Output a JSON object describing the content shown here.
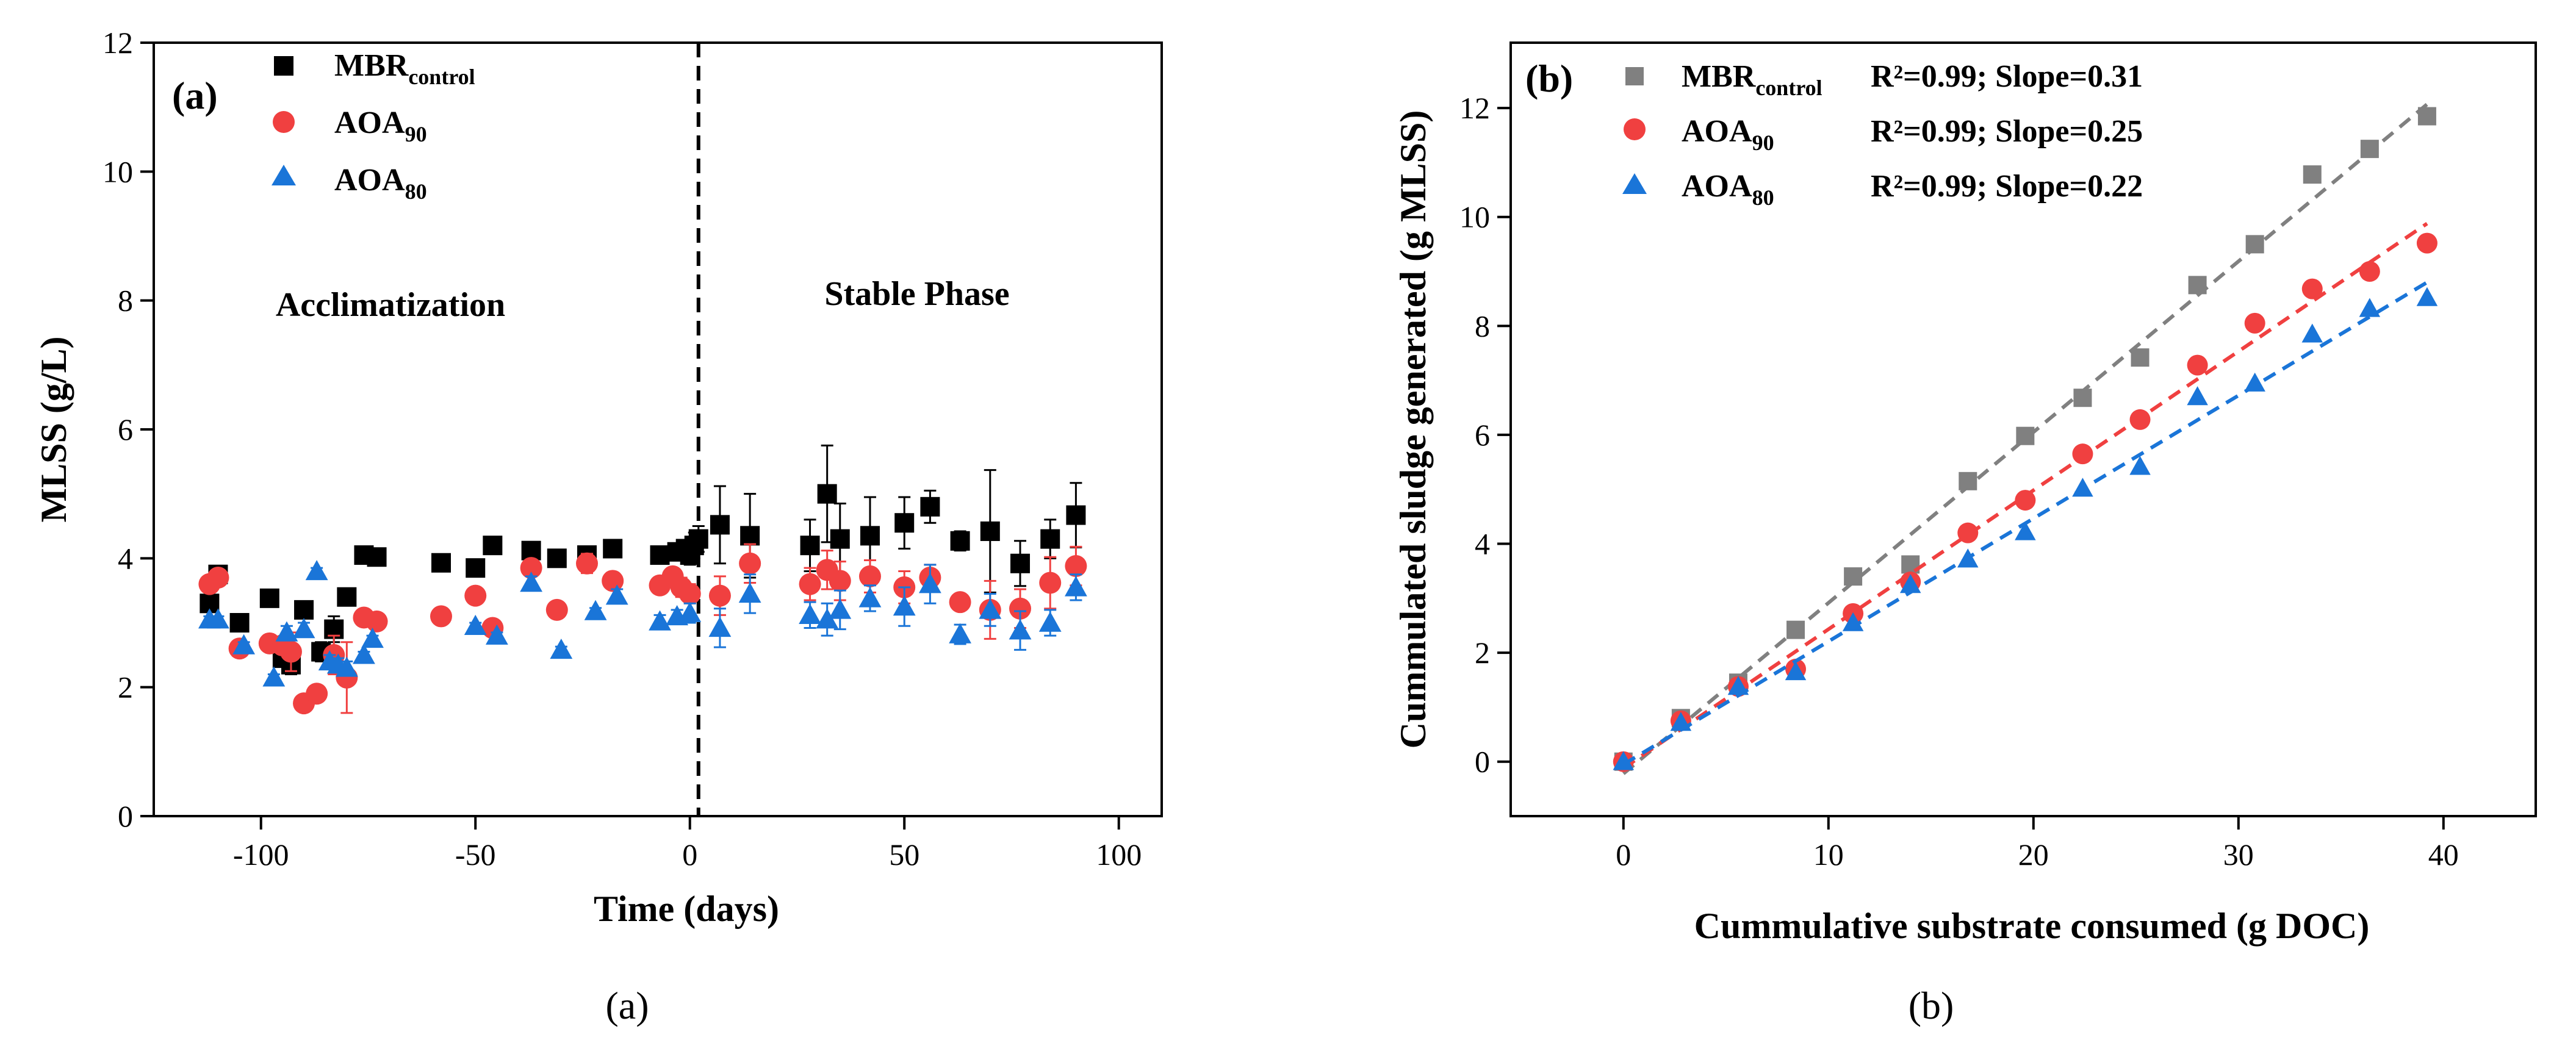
{
  "chart_data": [
    {
      "type": "scatter",
      "panel_tag": "(a)",
      "caption": "(a)",
      "xlabel": "Time (days)",
      "ylabel": "MLSS (g/L)",
      "xlim": [
        -125,
        110
      ],
      "ylim": [
        0,
        12
      ],
      "xticks": [
        -100,
        -50,
        0,
        50,
        100
      ],
      "yticks": [
        0,
        2,
        4,
        6,
        8,
        10,
        12
      ],
      "xtick_labels": [
        "-100",
        "-50",
        "0",
        "50",
        "100"
      ],
      "ytick_labels": [
        "0",
        "2",
        "4",
        "6",
        "8",
        "10",
        "12"
      ],
      "annotations": [
        "Acclimatization",
        "Stable Phase"
      ],
      "divider_x": 2,
      "series": [
        {
          "name_main": "MBR",
          "name_sub": "control",
          "marker": "square",
          "color": "#000000",
          "x": [
            -112,
            -110,
            -105,
            -98,
            -95,
            -93,
            -90,
            -86,
            -83,
            -80,
            -76,
            -73,
            -58,
            -50,
            -46,
            -37,
            -31,
            -24,
            -18,
            -7,
            -3,
            -1,
            0,
            1,
            2,
            7,
            14,
            28,
            32,
            35,
            42,
            50,
            56,
            63,
            70,
            77,
            84,
            90
          ],
          "y": [
            3.3,
            3.75,
            3.0,
            3.38,
            2.45,
            2.35,
            3.2,
            2.55,
            2.9,
            3.4,
            4.05,
            4.02,
            3.93,
            3.85,
            4.2,
            4.12,
            4.0,
            4.05,
            4.15,
            4.05,
            4.1,
            4.15,
            4.05,
            4.2,
            4.3,
            4.52,
            4.35,
            4.2,
            5.0,
            4.3,
            4.35,
            4.55,
            4.8,
            4.27,
            4.42,
            3.92,
            4.3,
            4.67
          ],
          "err": [
            0.1,
            0.1,
            0.05,
            0.05,
            0.1,
            0.15,
            0.1,
            0.15,
            0.2,
            0.1,
            0.05,
            0.05,
            0.05,
            0.05,
            0.05,
            0.05,
            0.05,
            0.1,
            0.05,
            0.1,
            0.1,
            0.1,
            0.15,
            0.2,
            0.2,
            0.6,
            0.65,
            0.4,
            0.75,
            0.55,
            0.6,
            0.4,
            0.25,
            0.15,
            0.95,
            0.35,
            0.3,
            0.5
          ]
        },
        {
          "name_main": "AOA",
          "name_sub": "90",
          "marker": "circle",
          "color": "#f04040",
          "x": [
            -112,
            -110,
            -105,
            -98,
            -95,
            -93,
            -90,
            -87,
            -83,
            -80,
            -76,
            -73,
            -58,
            -50,
            -46,
            -37,
            -31,
            -24,
            -18,
            -7,
            -4,
            -2,
            0,
            7,
            14,
            28,
            32,
            35,
            42,
            50,
            56,
            63,
            70,
            77,
            84,
            90
          ],
          "y": [
            3.6,
            3.7,
            2.6,
            2.68,
            2.65,
            2.55,
            1.75,
            1.9,
            2.5,
            2.15,
            3.08,
            3.02,
            3.1,
            3.42,
            2.92,
            3.85,
            3.2,
            3.92,
            3.65,
            3.58,
            3.72,
            3.55,
            3.45,
            3.42,
            3.92,
            3.6,
            3.82,
            3.65,
            3.72,
            3.55,
            3.7,
            3.32,
            3.2,
            3.22,
            3.62,
            3.88
          ],
          "err": [
            0.1,
            0.1,
            0.05,
            0.05,
            0.1,
            0.3,
            0.05,
            0.1,
            0.3,
            0.55,
            0.05,
            0.05,
            0.05,
            0.05,
            0.05,
            0.05,
            0.05,
            0.15,
            0.05,
            0.1,
            0.1,
            0.15,
            0.15,
            0.3,
            0.3,
            0.25,
            0.3,
            0.3,
            0.25,
            0.25,
            0.2,
            0.1,
            0.45,
            0.3,
            0.4,
            0.3
          ]
        },
        {
          "name_main": "AOA",
          "name_sub": "80",
          "marker": "triangle",
          "color": "#1a75d8",
          "x": [
            -112,
            -110,
            -104,
            -97,
            -94,
            -90,
            -87,
            -84,
            -82,
            -80,
            -76,
            -74,
            -50,
            -45,
            -37,
            -30,
            -22,
            -17,
            -7,
            -3,
            0,
            7,
            14,
            28,
            32,
            35,
            42,
            50,
            56,
            63,
            70,
            77,
            84,
            90
          ],
          "y": [
            3.05,
            3.05,
            2.65,
            2.15,
            2.85,
            2.9,
            3.8,
            2.4,
            2.35,
            2.3,
            2.5,
            2.75,
            2.95,
            2.8,
            3.62,
            2.58,
            3.18,
            3.42,
            3.02,
            3.1,
            3.15,
            2.92,
            3.45,
            3.12,
            3.05,
            3.2,
            3.38,
            3.25,
            3.6,
            2.82,
            3.2,
            2.88,
            3.0,
            3.55
          ],
          "err": [
            0.05,
            0.05,
            0.05,
            0.05,
            0.1,
            0.1,
            0.05,
            0.1,
            0.1,
            0.1,
            0.05,
            0.05,
            0.05,
            0.05,
            0.1,
            0.05,
            0.05,
            0.1,
            0.1,
            0.1,
            0.15,
            0.3,
            0.3,
            0.2,
            0.25,
            0.3,
            0.2,
            0.3,
            0.3,
            0.15,
            0.25,
            0.3,
            0.2,
            0.2
          ]
        }
      ]
    },
    {
      "type": "scatter",
      "panel_tag": "(b)",
      "caption": "(b)",
      "xlabel": "Cummulative substrate consumed (g DOC)",
      "ylabel": "Cummulated sludge generated (g MLSS)",
      "xlim": [
        -5.5,
        44.5
      ],
      "ylim": [
        -1,
        13.2
      ],
      "xticks": [
        0,
        10,
        20,
        30,
        40
      ],
      "yticks": [
        0,
        2,
        4,
        6,
        8,
        10,
        12
      ],
      "xtick_labels": [
        "0",
        "10",
        "20",
        "30",
        "40"
      ],
      "ytick_labels": [
        "0",
        "2",
        "4",
        "6",
        "8",
        "10",
        "12"
      ],
      "series": [
        {
          "name_main": "MBR",
          "name_sub": "control",
          "marker": "square",
          "color": "#808080",
          "stats": "R²=0.99; Slope=0.31",
          "fit": {
            "x0": 0,
            "y0": -0.22,
            "x1": 39.2,
            "y1": 12.07
          },
          "x": [
            0,
            2.8,
            5.6,
            8.4,
            11.2,
            14,
            16.8,
            19.6,
            22.4,
            25.2,
            28,
            30.8,
            33.6,
            36.4,
            39.2
          ],
          "y": [
            0,
            0.8,
            1.45,
            2.42,
            3.4,
            3.62,
            5.15,
            5.98,
            6.68,
            7.42,
            8.75,
            9.5,
            10.78,
            11.25,
            11.85
          ]
        },
        {
          "name_main": "AOA",
          "name_sub": "90",
          "marker": "circle",
          "color": "#f04040",
          "stats": "R²=0.99; Slope=0.25",
          "fit": {
            "x0": 0,
            "y0": -0.12,
            "x1": 39.2,
            "y1": 9.88
          },
          "x": [
            0,
            2.8,
            5.6,
            8.4,
            11.2,
            14,
            16.8,
            19.6,
            22.4,
            25.2,
            28,
            30.8,
            33.6,
            36.4,
            39.2
          ],
          "y": [
            0,
            0.75,
            1.38,
            1.7,
            2.72,
            3.3,
            4.2,
            4.8,
            5.65,
            6.28,
            7.28,
            8.05,
            8.68,
            9.0,
            9.52
          ]
        },
        {
          "name_main": "AOA",
          "name_sub": "80",
          "marker": "triangle",
          "color": "#1a75d8",
          "stats": "R²=0.99; Slope=0.22",
          "fit": {
            "x0": 0,
            "y0": -0.05,
            "x1": 39.2,
            "y1": 8.8
          },
          "x": [
            0,
            2.8,
            5.6,
            8.4,
            11.2,
            14,
            16.8,
            19.6,
            22.4,
            25.2,
            28,
            30.8,
            33.6,
            36.4,
            39.2
          ],
          "y": [
            0,
            0.72,
            1.38,
            1.65,
            2.55,
            3.25,
            3.72,
            4.22,
            5.02,
            5.42,
            6.7,
            6.95,
            7.85,
            8.32,
            8.52
          ]
        }
      ]
    }
  ]
}
